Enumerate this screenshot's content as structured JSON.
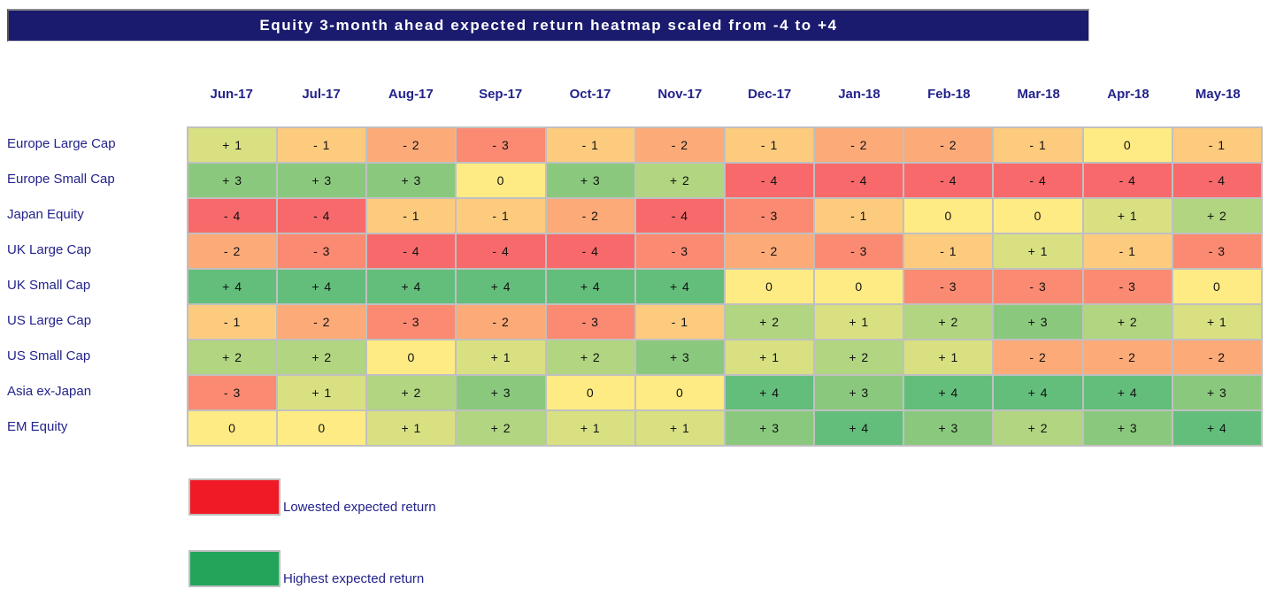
{
  "title": "Equity 3-month ahead expected return heatmap scaled from -4 to +4",
  "colors": {
    "title_bar_bg": "#1a1a6e",
    "title_text": "#ffffff",
    "label_text": "#23238c",
    "cell_text": "#111111",
    "grid_line": "#c0c0c0"
  },
  "cell_format": {
    "positive_prefix": "+ ",
    "negative_prefix": "- ",
    "zero": "0"
  },
  "chart_data": {
    "type": "heatmap",
    "title": "Equity 3-month ahead expected return heatmap scaled from -4 to +4",
    "x_categories": [
      "Jun-17",
      "Jul-17",
      "Aug-17",
      "Sep-17",
      "Oct-17",
      "Nov-17",
      "Dec-17",
      "Jan-18",
      "Feb-18",
      "Mar-18",
      "Apr-18",
      "May-18"
    ],
    "y_categories": [
      "Europe Large Cap",
      "Europe Small Cap",
      "Japan Equity",
      "UK Large Cap",
      "UK Small Cap",
      "US Large Cap",
      "US Small Cap",
      "Asia ex-Japan",
      "EM Equity"
    ],
    "series": [
      {
        "name": "Europe Large Cap",
        "values": [
          1,
          -1,
          -2,
          -3,
          -1,
          -2,
          -1,
          -2,
          -2,
          -1,
          0,
          -1
        ]
      },
      {
        "name": "Europe Small Cap",
        "values": [
          3,
          3,
          3,
          0,
          3,
          2,
          -4,
          -4,
          -4,
          -4,
          -4,
          -4
        ]
      },
      {
        "name": "Japan Equity",
        "values": [
          -4,
          -4,
          -1,
          -1,
          -2,
          -4,
          -3,
          -1,
          0,
          0,
          1,
          2
        ]
      },
      {
        "name": "UK Large Cap",
        "values": [
          -2,
          -3,
          -4,
          -4,
          -4,
          -3,
          -2,
          -3,
          -1,
          1,
          -1,
          -3
        ]
      },
      {
        "name": "UK Small Cap",
        "values": [
          4,
          4,
          4,
          4,
          4,
          4,
          0,
          0,
          -3,
          -3,
          -3,
          0
        ]
      },
      {
        "name": "US Large Cap",
        "values": [
          -1,
          -2,
          -3,
          -2,
          -3,
          -1,
          2,
          1,
          2,
          3,
          2,
          1
        ]
      },
      {
        "name": "US Small Cap",
        "values": [
          2,
          2,
          0,
          1,
          2,
          3,
          1,
          2,
          1,
          -2,
          -2,
          -2
        ]
      },
      {
        "name": "Asia ex-Japan",
        "values": [
          -3,
          1,
          2,
          3,
          0,
          0,
          4,
          3,
          4,
          4,
          4,
          3
        ]
      },
      {
        "name": "EM Equity",
        "values": [
          0,
          0,
          1,
          2,
          1,
          1,
          3,
          4,
          3,
          2,
          3,
          4
        ]
      }
    ],
    "scale": {
      "min": -4,
      "max": 4,
      "min_color": "#F8696B",
      "mid_color": "#FFEB84",
      "max_color": "#63BE7B"
    },
    "legend": [
      {
        "color": "#EF1A26",
        "label": "Lowested expected return"
      },
      {
        "color": "#22A55A",
        "label": "Highest expected return"
      }
    ]
  }
}
